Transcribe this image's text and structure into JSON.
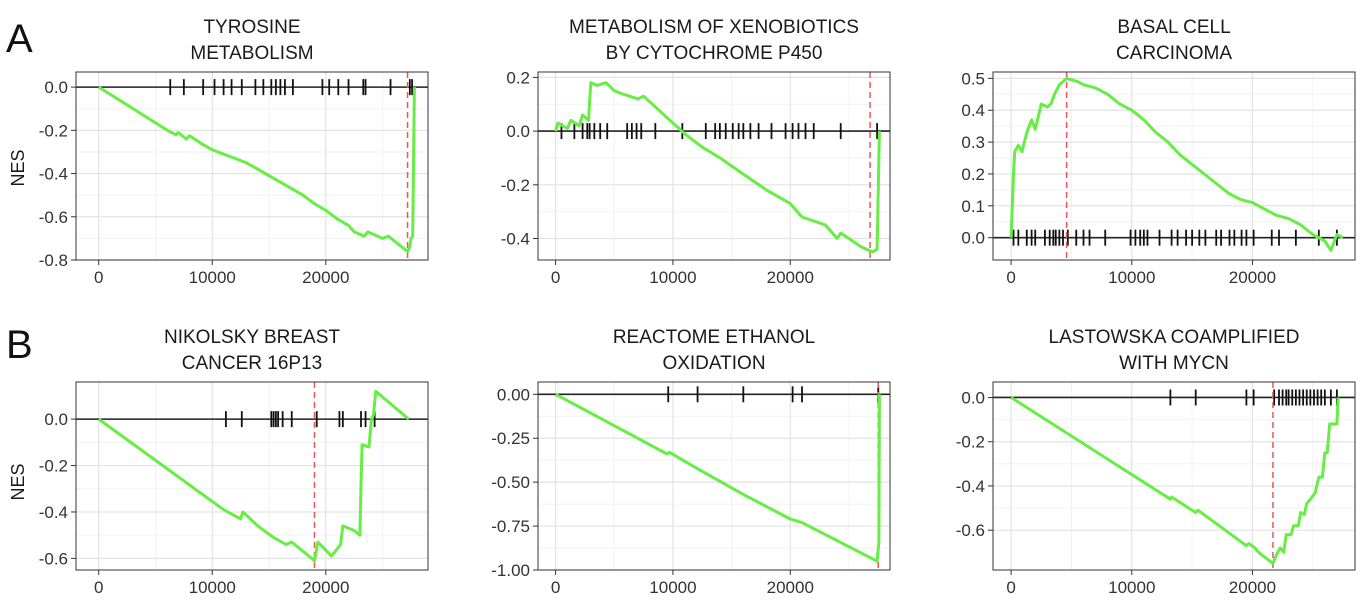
{
  "figure": {
    "rows": [
      {
        "letter": "A",
        "ylabel": "NES"
      },
      {
        "letter": "B",
        "ylabel": "NES"
      }
    ]
  },
  "chart_data": [
    {
      "type": "line",
      "title_lines": [
        "TYROSINE",
        "METABOLISM"
      ],
      "xlim": [
        -2000,
        29000
      ],
      "ylim": [
        -0.8,
        0.07
      ],
      "xticks": [
        0,
        10000,
        20000
      ],
      "yticks": [
        0.0,
        -0.2,
        -0.4,
        -0.6,
        -0.8
      ],
      "ytick_labels": [
        "0.0",
        "-0.2",
        "-0.4",
        "-0.6",
        "-0.8"
      ],
      "grid": true,
      "line_color": "#66ee44",
      "peak_color": "#ee5555",
      "peak_x": 27200,
      "curve": [
        [
          0,
          0
        ],
        [
          6200,
          -0.205
        ],
        [
          6800,
          -0.22
        ],
        [
          7000,
          -0.21
        ],
        [
          7700,
          -0.24
        ],
        [
          8000,
          -0.225
        ],
        [
          9000,
          -0.26
        ],
        [
          10000,
          -0.29
        ],
        [
          11000,
          -0.31
        ],
        [
          12000,
          -0.33
        ],
        [
          13000,
          -0.35
        ],
        [
          14000,
          -0.38
        ],
        [
          15000,
          -0.41
        ],
        [
          16000,
          -0.44
        ],
        [
          17000,
          -0.47
        ],
        [
          18000,
          -0.5
        ],
        [
          19000,
          -0.54
        ],
        [
          20000,
          -0.57
        ],
        [
          21000,
          -0.61
        ],
        [
          22000,
          -0.64
        ],
        [
          22500,
          -0.67
        ],
        [
          23400,
          -0.69
        ],
        [
          23700,
          -0.67
        ],
        [
          25000,
          -0.7
        ],
        [
          25500,
          -0.69
        ],
        [
          27200,
          -0.76
        ],
        [
          27400,
          -0.74
        ],
        [
          27500,
          -0.7
        ],
        [
          27650,
          -0.69
        ],
        [
          27800,
          0.0
        ]
      ],
      "hits": [
        6300,
        7500,
        9200,
        10200,
        11000,
        11700,
        12600,
        13800,
        14500,
        15200,
        15600,
        16000,
        16400,
        17100,
        19700,
        20300,
        21100,
        22000,
        23300,
        23500,
        25700,
        27400,
        27600
      ]
    },
    {
      "type": "line",
      "title_lines": [
        "METABOLISM OF XENOBIOTICS",
        "BY CYTOCHROME P450"
      ],
      "xlim": [
        -1500,
        28500
      ],
      "ylim": [
        -0.48,
        0.22
      ],
      "xticks": [
        0,
        10000,
        20000
      ],
      "yticks": [
        0.2,
        0.0,
        -0.2,
        -0.4
      ],
      "ytick_labels": [
        "0.2",
        "0.0",
        "-0.2",
        "-0.4"
      ],
      "grid": true,
      "line_color": "#66ee44",
      "peak_color": "#ee5555",
      "peak_x": 26800,
      "curve": [
        [
          0,
          0.0
        ],
        [
          200,
          0.03
        ],
        [
          1000,
          0.01
        ],
        [
          1300,
          0.04
        ],
        [
          2000,
          0.02
        ],
        [
          2300,
          0.06
        ],
        [
          2800,
          0.04
        ],
        [
          3000,
          0.18
        ],
        [
          3500,
          0.17
        ],
        [
          4300,
          0.18
        ],
        [
          5000,
          0.15
        ],
        [
          5600,
          0.14
        ],
        [
          6300,
          0.13
        ],
        [
          7000,
          0.12
        ],
        [
          7500,
          0.13
        ],
        [
          9000,
          0.07
        ],
        [
          10000,
          0.03
        ],
        [
          11000,
          -0.01
        ],
        [
          12500,
          -0.06
        ],
        [
          14000,
          -0.1
        ],
        [
          16000,
          -0.16
        ],
        [
          18000,
          -0.22
        ],
        [
          20000,
          -0.27
        ],
        [
          21000,
          -0.32
        ],
        [
          23000,
          -0.35
        ],
        [
          24000,
          -0.4
        ],
        [
          24300,
          -0.38
        ],
        [
          25000,
          -0.4
        ],
        [
          26000,
          -0.43
        ],
        [
          27000,
          -0.45
        ],
        [
          27400,
          -0.44
        ],
        [
          27600,
          0.0
        ]
      ],
      "hits": [
        500,
        1600,
        2300,
        2700,
        2900,
        3300,
        3800,
        4400,
        6100,
        6500,
        6900,
        7300,
        8500,
        10800,
        12800,
        13600,
        14000,
        14500,
        15100,
        15600,
        16000,
        16600,
        17300,
        18400,
        19600,
        20200,
        20700,
        21300,
        22000,
        24300,
        27400
      ]
    },
    {
      "type": "line",
      "title_lines": [
        "BASAL CELL",
        "CARCINOMA"
      ],
      "xlim": [
        -1500,
        28500
      ],
      "ylim": [
        -0.07,
        0.52
      ],
      "xticks": [
        0,
        10000,
        20000
      ],
      "yticks": [
        0.5,
        0.4,
        0.3,
        0.2,
        0.1,
        0.0
      ],
      "ytick_labels": [
        "0.5",
        "0.4",
        "0.3",
        "0.2",
        "0.1",
        "0.0"
      ],
      "grid": true,
      "line_color": "#66ee44",
      "peak_color": "#ee5555",
      "peak_x": 4600,
      "curve": [
        [
          0,
          0.0
        ],
        [
          100,
          0.1
        ],
        [
          200,
          0.2
        ],
        [
          300,
          0.27
        ],
        [
          600,
          0.29
        ],
        [
          900,
          0.27
        ],
        [
          1300,
          0.33
        ],
        [
          1700,
          0.37
        ],
        [
          2000,
          0.34
        ],
        [
          2500,
          0.42
        ],
        [
          3000,
          0.41
        ],
        [
          3300,
          0.42
        ],
        [
          3600,
          0.45
        ],
        [
          4000,
          0.48
        ],
        [
          4600,
          0.5
        ],
        [
          5500,
          0.49
        ],
        [
          6000,
          0.48
        ],
        [
          7000,
          0.47
        ],
        [
          8000,
          0.45
        ],
        [
          9000,
          0.42
        ],
        [
          10000,
          0.4
        ],
        [
          11000,
          0.37
        ],
        [
          12000,
          0.33
        ],
        [
          13000,
          0.3
        ],
        [
          14000,
          0.26
        ],
        [
          15000,
          0.23
        ],
        [
          16000,
          0.2
        ],
        [
          17000,
          0.17
        ],
        [
          18000,
          0.14
        ],
        [
          19000,
          0.12
        ],
        [
          20000,
          0.11
        ],
        [
          21000,
          0.09
        ],
        [
          22000,
          0.07
        ],
        [
          23000,
          0.06
        ],
        [
          24000,
          0.04
        ],
        [
          25000,
          0.01
        ],
        [
          26000,
          -0.01
        ],
        [
          26500,
          -0.04
        ],
        [
          27000,
          0.01
        ],
        [
          27500,
          0.0
        ]
      ],
      "hits": [
        200,
        600,
        1300,
        1700,
        2000,
        2800,
        3200,
        3500,
        3700,
        4000,
        4300,
        4700,
        5400,
        6000,
        6500,
        7800,
        9900,
        10300,
        10700,
        11000,
        11300,
        12300,
        13300,
        13800,
        14500,
        15000,
        15600,
        16100,
        17000,
        17400,
        18100,
        18500,
        19100,
        19500,
        20100,
        21600,
        22200,
        23600,
        25500,
        27000
      ]
    },
    {
      "type": "line",
      "title_lines": [
        "NIKOLSKY BREAST",
        "CANCER 16P13"
      ],
      "xlim": [
        -2000,
        29000
      ],
      "ylim": [
        -0.65,
        0.16
      ],
      "xticks": [
        0,
        10000,
        20000
      ],
      "yticks": [
        0.0,
        -0.2,
        -0.4,
        -0.6
      ],
      "ytick_labels": [
        "0.0",
        "-0.2",
        "-0.4",
        "-0.6"
      ],
      "grid": true,
      "line_color": "#66ee44",
      "peak_color": "#ee5555",
      "peak_x": 19000,
      "curve": [
        [
          0,
          0
        ],
        [
          11000,
          -0.39
        ],
        [
          12500,
          -0.43
        ],
        [
          12700,
          -0.4
        ],
        [
          14000,
          -0.46
        ],
        [
          15400,
          -0.51
        ],
        [
          16500,
          -0.54
        ],
        [
          17000,
          -0.53
        ],
        [
          18000,
          -0.57
        ],
        [
          19000,
          -0.61
        ],
        [
          19300,
          -0.53
        ],
        [
          20500,
          -0.59
        ],
        [
          21300,
          -0.54
        ],
        [
          21500,
          -0.46
        ],
        [
          22500,
          -0.48
        ],
        [
          23000,
          -0.5
        ],
        [
          23100,
          -0.28
        ],
        [
          23200,
          -0.11
        ],
        [
          23800,
          -0.12
        ],
        [
          24000,
          -0.01
        ],
        [
          24200,
          0.02
        ],
        [
          24400,
          0.12
        ],
        [
          27300,
          0.0
        ]
      ],
      "hits": [
        11200,
        12600,
        15200,
        15400,
        15600,
        15800,
        16200,
        17000,
        19200,
        21200,
        21500,
        23100,
        23500,
        24300
      ]
    },
    {
      "type": "line",
      "title_lines": [
        "REACTOME ETHANOL",
        "OXIDATION"
      ],
      "xlim": [
        -1500,
        28500
      ],
      "ylim": [
        -1.0,
        0.07
      ],
      "xticks": [
        0,
        10000,
        20000
      ],
      "yticks": [
        0.0,
        -0.25,
        -0.5,
        -0.75,
        -1.0
      ],
      "ytick_labels": [
        "0.00",
        "-0.25",
        "-0.50",
        "-0.75",
        "-1.00"
      ],
      "grid": true,
      "line_color": "#66ee44",
      "peak_color": "#ee5555",
      "peak_x": 27500,
      "curve": [
        [
          0,
          0
        ],
        [
          9500,
          -0.34
        ],
        [
          9700,
          -0.33
        ],
        [
          12000,
          -0.42
        ],
        [
          16000,
          -0.57
        ],
        [
          20000,
          -0.71
        ],
        [
          21000,
          -0.73
        ],
        [
          27400,
          -0.95
        ],
        [
          27550,
          -0.84
        ],
        [
          27600,
          0.0
        ]
      ],
      "hits": [
        9600,
        12100,
        16000,
        20200,
        21000,
        27500
      ]
    },
    {
      "type": "line",
      "title_lines": [
        "LASTOWSKA COAMPLIFIED",
        "WITH MYCN"
      ],
      "xlim": [
        -1500,
        28500
      ],
      "ylim": [
        -0.78,
        0.07
      ],
      "xticks": [
        0,
        10000,
        20000
      ],
      "yticks": [
        0.0,
        -0.2,
        -0.4,
        -0.6
      ],
      "ytick_labels": [
        "0.0",
        "-0.2",
        "-0.4",
        "-0.6"
      ],
      "grid": true,
      "line_color": "#66ee44",
      "peak_color": "#ee5555",
      "peak_x": 21700,
      "curve": [
        [
          0,
          0
        ],
        [
          13200,
          -0.46
        ],
        [
          13300,
          -0.45
        ],
        [
          15300,
          -0.52
        ],
        [
          15500,
          -0.51
        ],
        [
          19500,
          -0.67
        ],
        [
          19700,
          -0.66
        ],
        [
          20200,
          -0.68
        ],
        [
          20500,
          -0.7
        ],
        [
          21700,
          -0.75
        ],
        [
          22000,
          -0.71
        ],
        [
          22300,
          -0.68
        ],
        [
          22600,
          -0.7
        ],
        [
          22800,
          -0.62
        ],
        [
          23200,
          -0.62
        ],
        [
          23400,
          -0.58
        ],
        [
          23800,
          -0.58
        ],
        [
          24000,
          -0.52
        ],
        [
          24300,
          -0.53
        ],
        [
          24500,
          -0.48
        ],
        [
          24800,
          -0.46
        ],
        [
          25200,
          -0.43
        ],
        [
          25500,
          -0.36
        ],
        [
          25800,
          -0.36
        ],
        [
          26000,
          -0.25
        ],
        [
          26200,
          -0.25
        ],
        [
          26400,
          -0.12
        ],
        [
          27000,
          -0.12
        ],
        [
          27100,
          0.0
        ]
      ],
      "hits": [
        13200,
        15300,
        19500,
        20100,
        21800,
        22200,
        22500,
        22800,
        23000,
        23300,
        23600,
        23900,
        24200,
        24500,
        24800,
        25100,
        25400,
        25700,
        26000,
        26500,
        27000
      ]
    }
  ]
}
